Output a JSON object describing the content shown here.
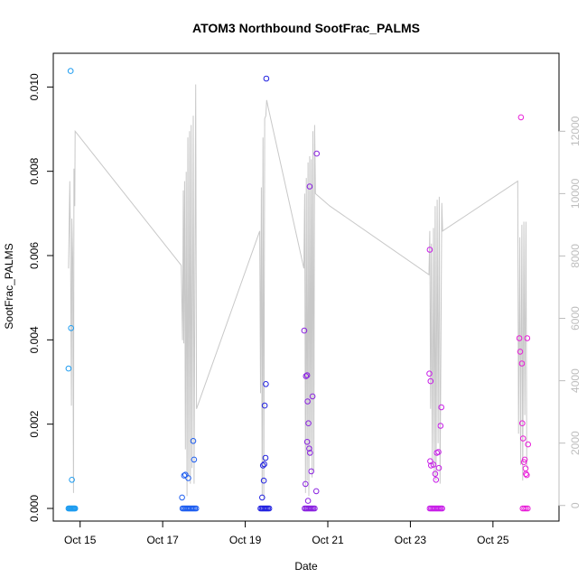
{
  "chart_data": {
    "type": "scatter",
    "title": "ATOM3 Northbound SootFrac_PALMS",
    "xlabel": "Date",
    "ylabel": "SootFrac_PALMS",
    "xlim": [
      14.35,
      26.6
    ],
    "ylim": [
      -0.0003,
      0.0108
    ],
    "y2lim": [
      -500,
      14500
    ],
    "x_ticks": [
      {
        "value": 15,
        "label": "Oct 15"
      },
      {
        "value": 17,
        "label": "Oct 17"
      },
      {
        "value": 19,
        "label": "Oct 19"
      },
      {
        "value": 21,
        "label": "Oct 21"
      },
      {
        "value": 23,
        "label": "Oct 23"
      },
      {
        "value": 25,
        "label": "Oct 25"
      }
    ],
    "y_ticks": [
      {
        "value": 0.0,
        "label": "0.000"
      },
      {
        "value": 0.002,
        "label": "0.002"
      },
      {
        "value": 0.004,
        "label": "0.004"
      },
      {
        "value": 0.006,
        "label": "0.006"
      },
      {
        "value": 0.008,
        "label": "0.008"
      },
      {
        "value": 0.01,
        "label": "0.010"
      }
    ],
    "y2_ticks": [
      {
        "value": 0,
        "label": "0"
      },
      {
        "value": 2000,
        "label": "2000"
      },
      {
        "value": 4000,
        "label": "4000"
      },
      {
        "value": 6000,
        "label": "6000"
      },
      {
        "value": 8000,
        "label": "8000"
      },
      {
        "value": 10000,
        "label": "10000"
      },
      {
        "value": 12000,
        "label": "12000"
      }
    ],
    "grid": false,
    "colors": {
      "altitude_line": "#c8c8c8",
      "flight1": "#1e9cf0",
      "flight2": "#1e5ef0",
      "flight3": "#2222e0",
      "flight4": "#8a22e0",
      "flight5": "#c81ee8",
      "flight6": "#e81ed8"
    },
    "secondary_series": {
      "kind": "altitude-profile",
      "points": [
        [
          14.72,
          7600
        ],
        [
          14.75,
          10400
        ],
        [
          14.77,
          7800
        ],
        [
          14.79,
          3200
        ],
        [
          14.8,
          9200
        ],
        [
          14.82,
          7900
        ],
        [
          14.84,
          400
        ],
        [
          14.85,
          10800
        ],
        [
          14.87,
          9600
        ],
        [
          14.88,
          12000
        ],
        [
          17.45,
          7700
        ],
        [
          17.48,
          5300
        ],
        [
          17.5,
          10100
        ],
        [
          17.51,
          5200
        ],
        [
          17.53,
          10400
        ],
        [
          17.55,
          1800
        ],
        [
          17.57,
          10700
        ],
        [
          17.59,
          300
        ],
        [
          17.61,
          11800
        ],
        [
          17.63,
          900
        ],
        [
          17.65,
          12000
        ],
        [
          17.67,
          700
        ],
        [
          17.69,
          12200
        ],
        [
          17.71,
          1200
        ],
        [
          17.74,
          12500
        ],
        [
          17.76,
          700
        ],
        [
          17.8,
          13500
        ],
        [
          17.82,
          3100
        ],
        [
          19.35,
          8800
        ],
        [
          19.37,
          3600
        ],
        [
          19.39,
          10200
        ],
        [
          19.41,
          300
        ],
        [
          19.43,
          11800
        ],
        [
          19.45,
          200
        ],
        [
          19.47,
          12400
        ],
        [
          19.5,
          12500
        ],
        [
          19.52,
          13000
        ],
        [
          19.55,
          12800
        ],
        [
          20.42,
          7600
        ],
        [
          20.44,
          10000
        ],
        [
          20.46,
          400
        ],
        [
          20.48,
          10500
        ],
        [
          20.5,
          800
        ],
        [
          20.52,
          11000
        ],
        [
          20.54,
          300
        ],
        [
          20.56,
          11200
        ],
        [
          20.58,
          1600
        ],
        [
          20.6,
          11100
        ],
        [
          20.62,
          900
        ],
        [
          20.64,
          12000
        ],
        [
          20.66,
          1100
        ],
        [
          20.68,
          12200
        ],
        [
          20.7,
          10000
        ],
        [
          21.05,
          9600
        ],
        [
          23.45,
          7400
        ],
        [
          23.47,
          8800
        ],
        [
          23.49,
          3100
        ],
        [
          23.51,
          8400
        ],
        [
          23.53,
          1300
        ],
        [
          23.56,
          8900
        ],
        [
          23.58,
          900
        ],
        [
          23.6,
          9600
        ],
        [
          23.62,
          800
        ],
        [
          23.65,
          9800
        ],
        [
          23.67,
          2000
        ],
        [
          23.7,
          9900
        ],
        [
          23.72,
          700
        ],
        [
          23.76,
          9700
        ],
        [
          23.78,
          8800
        ],
        [
          25.6,
          10400
        ],
        [
          25.62,
          2300
        ],
        [
          25.65,
          8600
        ],
        [
          25.67,
          1300
        ],
        [
          25.7,
          9000
        ],
        [
          25.72,
          800
        ],
        [
          25.75,
          9100
        ],
        [
          25.77,
          2900
        ],
        [
          25.8,
          9100
        ],
        [
          25.82,
          1200
        ]
      ]
    },
    "series": [
      {
        "values": [
          [
            14.72,
            0.0
          ],
          [
            14.74,
            0.0
          ],
          [
            14.76,
            0.0
          ],
          [
            14.78,
            0.0
          ],
          [
            14.8,
            0.0
          ],
          [
            14.82,
            0.0
          ],
          [
            14.84,
            0.0
          ],
          [
            14.86,
            0.0
          ],
          [
            14.88,
            0.0
          ],
          [
            14.72,
            0.00332
          ],
          [
            14.78,
            0.00428
          ],
          [
            14.8,
            0.00068
          ],
          [
            14.77,
            0.01038
          ]
        ]
      },
      {
        "values": [
          [
            17.48,
            0.0
          ],
          [
            17.51,
            0.0
          ],
          [
            17.54,
            0.0
          ],
          [
            17.57,
            0.0
          ],
          [
            17.6,
            0.0
          ],
          [
            17.63,
            0.0
          ],
          [
            17.66,
            0.0
          ],
          [
            17.69,
            0.0
          ],
          [
            17.72,
            0.0
          ],
          [
            17.75,
            0.0
          ],
          [
            17.78,
            0.0
          ],
          [
            17.81,
            0.0
          ],
          [
            17.47,
            0.00026
          ],
          [
            17.52,
            0.00078
          ],
          [
            17.55,
            0.0008
          ],
          [
            17.62,
            0.00072
          ],
          [
            17.74,
            0.0016
          ],
          [
            17.76,
            0.00116
          ]
        ]
      },
      {
        "values": [
          [
            19.37,
            0.0
          ],
          [
            19.4,
            0.0
          ],
          [
            19.43,
            0.0
          ],
          [
            19.46,
            0.0
          ],
          [
            19.49,
            0.0
          ],
          [
            19.52,
            0.0
          ],
          [
            19.55,
            0.0
          ],
          [
            19.58,
            0.0
          ],
          [
            19.41,
            0.00026
          ],
          [
            19.43,
            0.00102
          ],
          [
            19.45,
            0.00066
          ],
          [
            19.46,
            0.00105
          ],
          [
            19.47,
            0.00244
          ],
          [
            19.49,
            0.0012
          ],
          [
            19.5,
            0.00295
          ],
          [
            19.51,
            0.0102
          ]
        ]
      },
      {
        "values": [
          [
            20.44,
            0.0
          ],
          [
            20.47,
            0.0
          ],
          [
            20.5,
            0.0
          ],
          [
            20.53,
            0.0
          ],
          [
            20.56,
            0.0
          ],
          [
            20.59,
            0.0
          ],
          [
            20.62,
            0.0
          ],
          [
            20.65,
            0.0
          ],
          [
            20.68,
            0.0
          ],
          [
            20.43,
            0.00422
          ],
          [
            20.46,
            0.00058
          ],
          [
            20.47,
            0.00314
          ],
          [
            20.5,
            0.00316
          ],
          [
            20.51,
            0.00254
          ],
          [
            20.52,
            0.00018
          ],
          [
            20.53,
            0.00202
          ],
          [
            20.55,
            0.00142
          ],
          [
            20.57,
            0.00132
          ],
          [
            20.6,
            0.00088
          ],
          [
            20.5,
            0.00158
          ],
          [
            20.56,
            0.00764
          ],
          [
            20.63,
            0.00266
          ],
          [
            20.72,
            0.00041
          ],
          [
            20.73,
            0.00842
          ]
        ]
      },
      {
        "values": [
          [
            23.47,
            0.0
          ],
          [
            23.5,
            0.0
          ],
          [
            23.53,
            0.0
          ],
          [
            23.56,
            0.0
          ],
          [
            23.59,
            0.0
          ],
          [
            23.62,
            0.0
          ],
          [
            23.65,
            0.0
          ],
          [
            23.68,
            0.0
          ],
          [
            23.71,
            0.0
          ],
          [
            23.74,
            0.0
          ],
          [
            23.77,
            0.0
          ],
          [
            23.47,
            0.00614
          ],
          [
            23.46,
            0.0032
          ],
          [
            23.49,
            0.00302
          ],
          [
            23.48,
            0.00112
          ],
          [
            23.5,
            0.00102
          ],
          [
            23.56,
            0.00104
          ],
          [
            23.6,
            0.00082
          ],
          [
            23.62,
            0.00068
          ],
          [
            23.64,
            0.00132
          ],
          [
            23.68,
            0.00134
          ],
          [
            23.69,
            0.00096
          ],
          [
            23.73,
            0.00196
          ],
          [
            23.75,
            0.0024
          ]
        ]
      },
      {
        "values": [
          [
            25.72,
            0.0
          ],
          [
            25.76,
            0.0
          ],
          [
            25.8,
            0.0
          ],
          [
            25.84,
            0.0
          ],
          [
            25.64,
            0.00404
          ],
          [
            25.66,
            0.00372
          ],
          [
            25.68,
            0.00928
          ],
          [
            25.7,
            0.00344
          ],
          [
            25.71,
            0.00202
          ],
          [
            25.73,
            0.00166
          ],
          [
            25.75,
            0.0011
          ],
          [
            25.77,
            0.00116
          ],
          [
            25.79,
            0.00095
          ],
          [
            25.8,
            0.00082
          ],
          [
            25.82,
            0.00079
          ],
          [
            25.83,
            0.00404
          ],
          [
            25.85,
            0.00152
          ]
        ]
      }
    ]
  }
}
